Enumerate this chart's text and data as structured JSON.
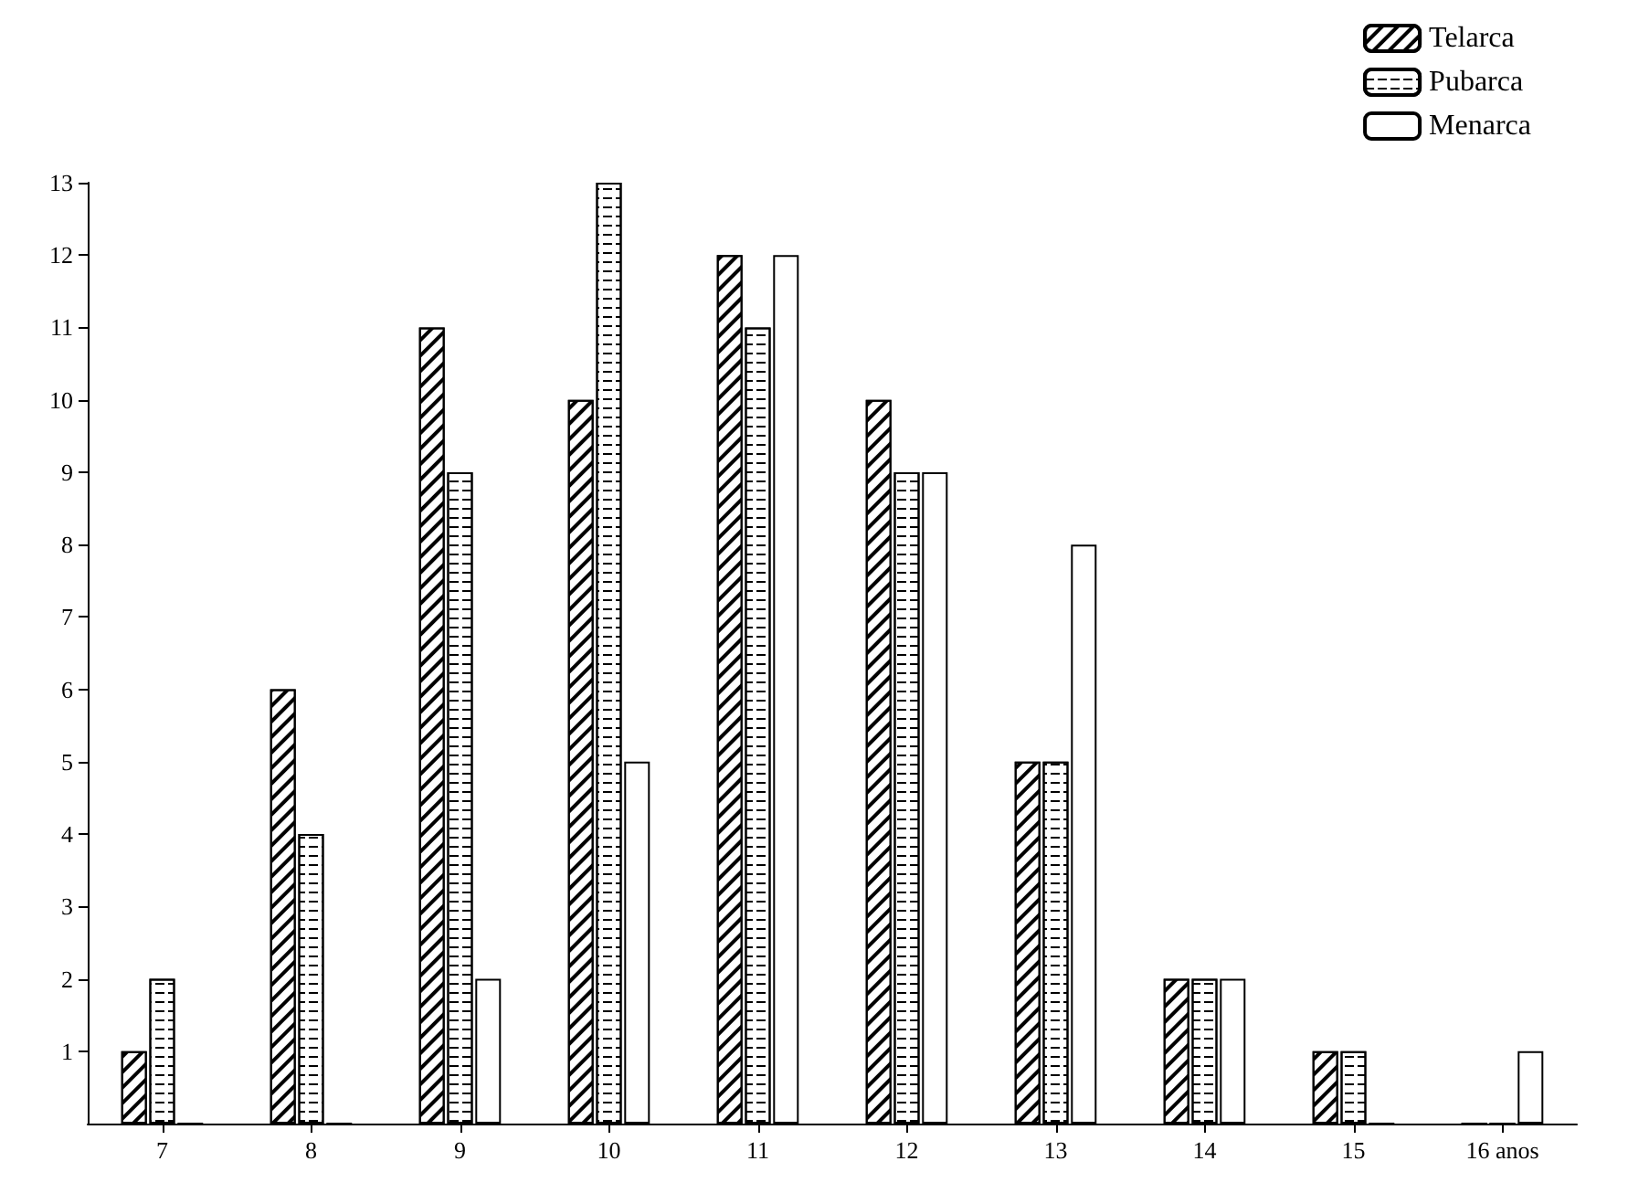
{
  "chart_data": {
    "type": "bar",
    "categories": [
      "7",
      "8",
      "9",
      "10",
      "11",
      "12",
      "13",
      "14",
      "15",
      "16 anos"
    ],
    "series": [
      {
        "name": "Telarca",
        "color": "#000000",
        "values": [
          1,
          6,
          11,
          10,
          12,
          10,
          5,
          2,
          1,
          0
        ]
      },
      {
        "name": "Pubarca",
        "color": "#000000",
        "values": [
          2,
          4,
          9,
          13,
          11,
          9,
          5,
          2,
          1,
          0
        ]
      },
      {
        "name": "Menarca",
        "color": "#000000",
        "values": [
          0,
          0,
          2,
          5,
          12,
          9,
          8,
          2,
          0,
          1
        ]
      }
    ],
    "ylim": [
      0,
      13
    ],
    "yticks": [
      1,
      2,
      3,
      4,
      5,
      6,
      7,
      8,
      9,
      10,
      11,
      12,
      13
    ],
    "grid": false,
    "legend": "top right"
  }
}
